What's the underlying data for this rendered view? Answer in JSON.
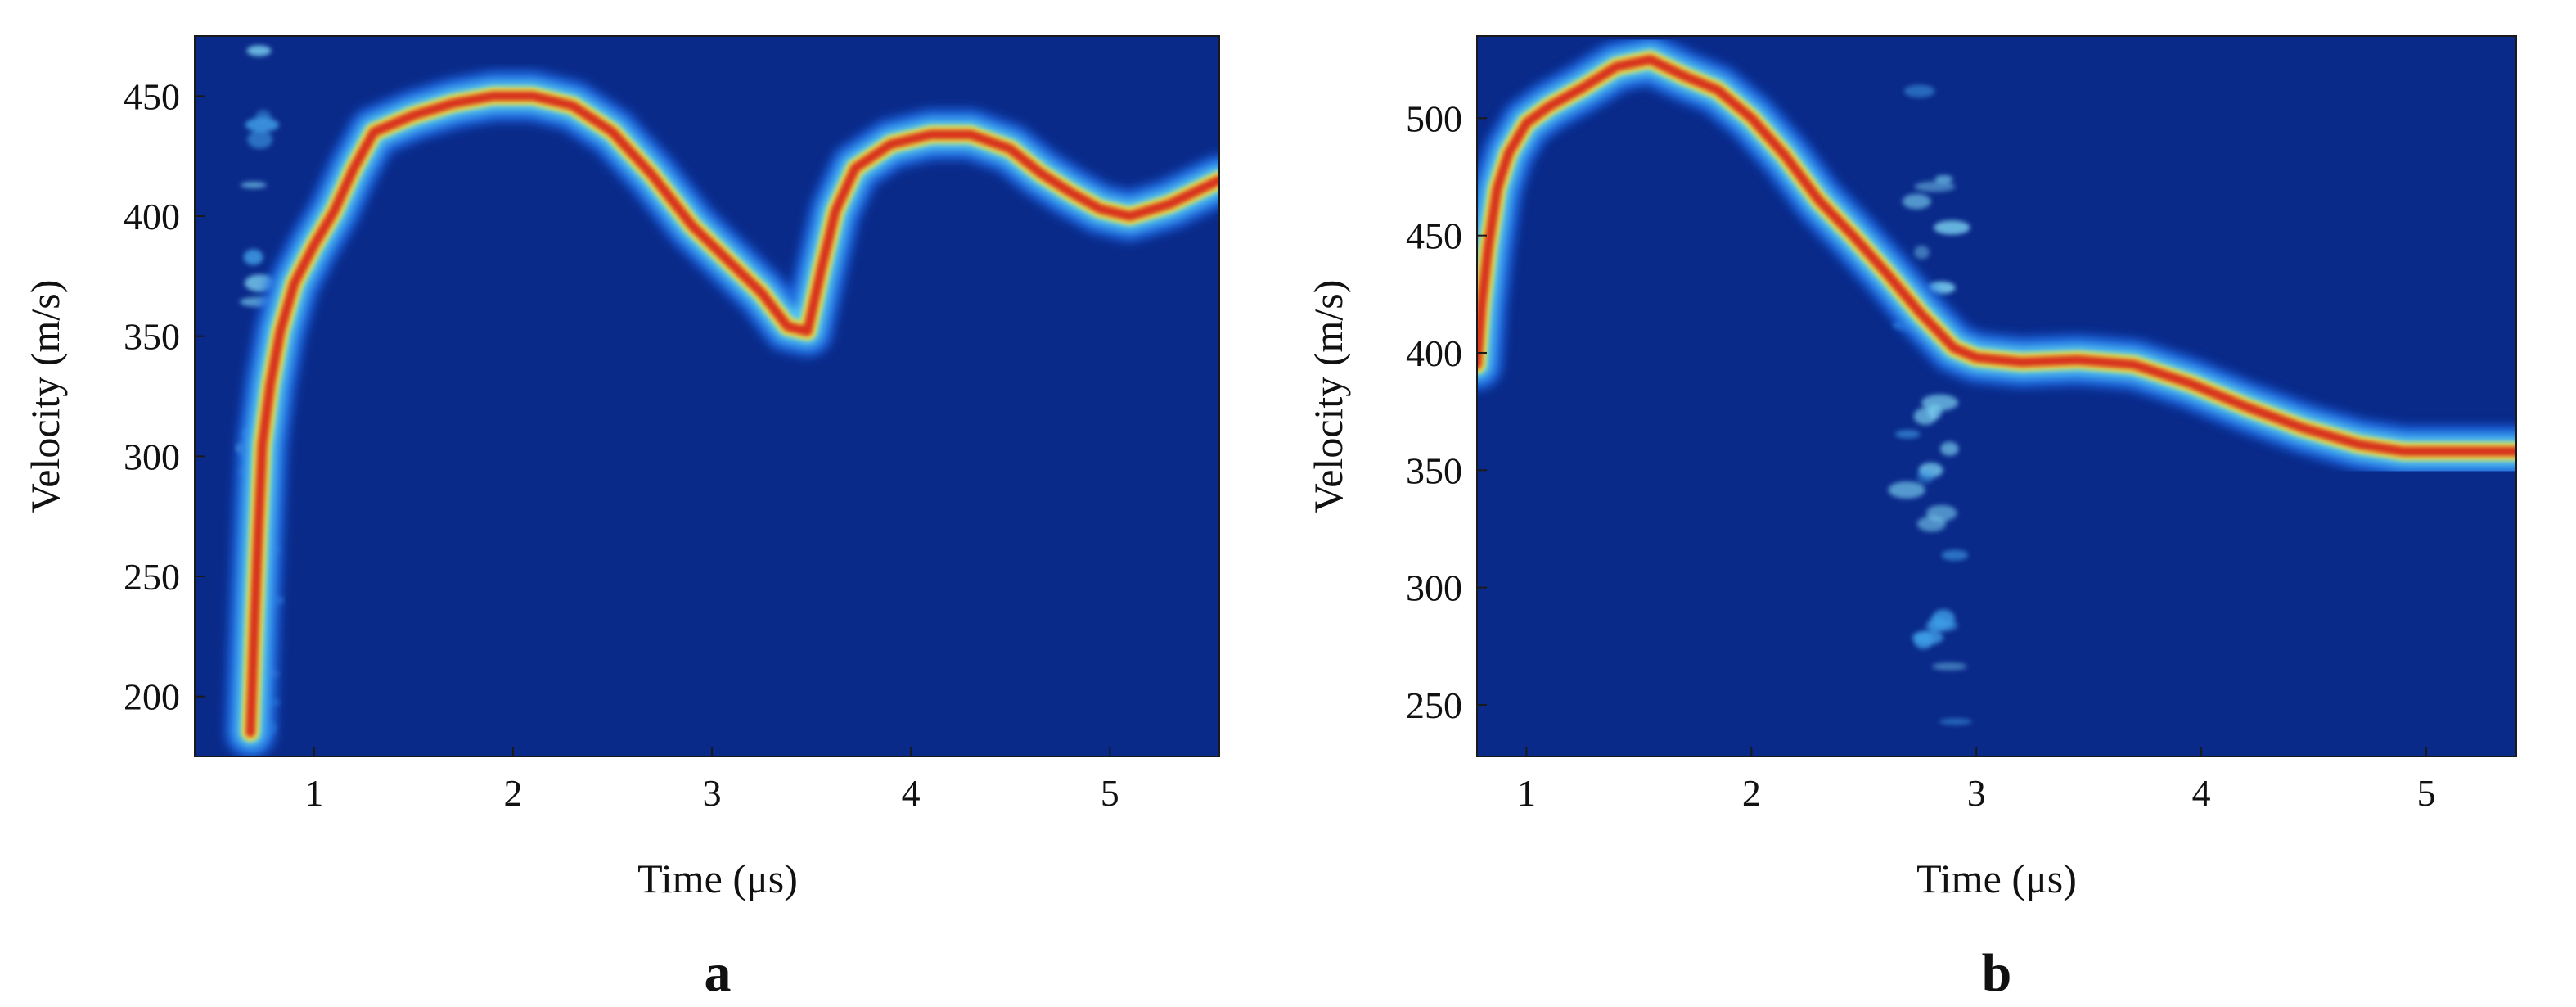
{
  "chart_data": [
    {
      "type": "heatmap",
      "panel_label": "a",
      "xlabel": "Time (μs)",
      "ylabel": "Velocity (m/s)",
      "xlim": [
        0.4,
        5.55
      ],
      "ylim": [
        175,
        475
      ],
      "xticks": [
        1,
        2,
        3,
        4,
        5
      ],
      "yticks": [
        200,
        250,
        300,
        350,
        400,
        450
      ],
      "ridge": [
        {
          "x": 0.68,
          "y": 185
        },
        {
          "x": 0.7,
          "y": 230
        },
        {
          "x": 0.72,
          "y": 270
        },
        {
          "x": 0.74,
          "y": 305
        },
        {
          "x": 0.78,
          "y": 330
        },
        {
          "x": 0.83,
          "y": 352
        },
        {
          "x": 0.9,
          "y": 372
        },
        {
          "x": 1.0,
          "y": 388
        },
        {
          "x": 1.1,
          "y": 402
        },
        {
          "x": 1.2,
          "y": 420
        },
        {
          "x": 1.3,
          "y": 435
        },
        {
          "x": 1.5,
          "y": 442
        },
        {
          "x": 1.7,
          "y": 447
        },
        {
          "x": 1.9,
          "y": 450
        },
        {
          "x": 2.1,
          "y": 450
        },
        {
          "x": 2.3,
          "y": 446
        },
        {
          "x": 2.5,
          "y": 435
        },
        {
          "x": 2.7,
          "y": 417
        },
        {
          "x": 2.9,
          "y": 396
        },
        {
          "x": 3.1,
          "y": 380
        },
        {
          "x": 3.25,
          "y": 368
        },
        {
          "x": 3.38,
          "y": 354
        },
        {
          "x": 3.48,
          "y": 352
        },
        {
          "x": 3.55,
          "y": 378
        },
        {
          "x": 3.62,
          "y": 402
        },
        {
          "x": 3.72,
          "y": 420
        },
        {
          "x": 3.9,
          "y": 430
        },
        {
          "x": 4.1,
          "y": 434
        },
        {
          "x": 4.3,
          "y": 434
        },
        {
          "x": 4.5,
          "y": 428
        },
        {
          "x": 4.65,
          "y": 418
        },
        {
          "x": 4.8,
          "y": 410
        },
        {
          "x": 4.95,
          "y": 403
        },
        {
          "x": 5.1,
          "y": 400
        },
        {
          "x": 5.3,
          "y": 405
        },
        {
          "x": 5.55,
          "y": 415
        }
      ]
    },
    {
      "type": "heatmap",
      "panel_label": "b",
      "xlabel": "Time (μs)",
      "ylabel": "Velocity (m/s)",
      "xlim": [
        0.78,
        5.4
      ],
      "ylim": [
        228,
        535
      ],
      "xticks": [
        1,
        2,
        3,
        4,
        5
      ],
      "yticks": [
        250,
        300,
        350,
        400,
        450,
        500
      ],
      "ridge": [
        {
          "x": 0.78,
          "y": 395
        },
        {
          "x": 0.8,
          "y": 420
        },
        {
          "x": 0.83,
          "y": 445
        },
        {
          "x": 0.87,
          "y": 470
        },
        {
          "x": 0.92,
          "y": 485
        },
        {
          "x": 1.0,
          "y": 498
        },
        {
          "x": 1.1,
          "y": 505
        },
        {
          "x": 1.25,
          "y": 513
        },
        {
          "x": 1.4,
          "y": 522
        },
        {
          "x": 1.55,
          "y": 525
        },
        {
          "x": 1.7,
          "y": 518
        },
        {
          "x": 1.85,
          "y": 512
        },
        {
          "x": 2.0,
          "y": 500
        },
        {
          "x": 2.15,
          "y": 484
        },
        {
          "x": 2.3,
          "y": 465
        },
        {
          "x": 2.45,
          "y": 450
        },
        {
          "x": 2.6,
          "y": 434
        },
        {
          "x": 2.75,
          "y": 417
        },
        {
          "x": 2.9,
          "y": 402
        },
        {
          "x": 3.0,
          "y": 398
        },
        {
          "x": 3.2,
          "y": 396
        },
        {
          "x": 3.45,
          "y": 397
        },
        {
          "x": 3.7,
          "y": 395
        },
        {
          "x": 3.95,
          "y": 387
        },
        {
          "x": 4.2,
          "y": 377
        },
        {
          "x": 4.45,
          "y": 368
        },
        {
          "x": 4.7,
          "y": 361
        },
        {
          "x": 4.9,
          "y": 358
        },
        {
          "x": 5.1,
          "y": 358
        },
        {
          "x": 5.4,
          "y": 358
        }
      ]
    }
  ]
}
